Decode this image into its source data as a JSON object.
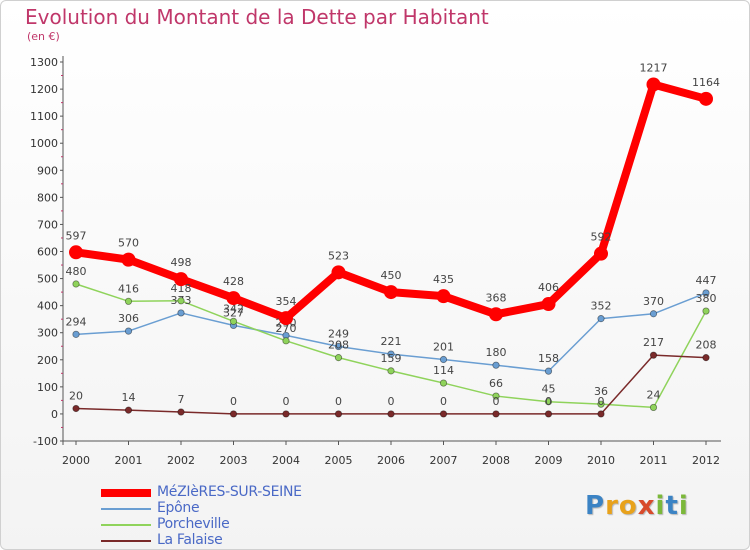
{
  "header": {
    "title": "Evolution du Montant de la Dette par Habitant",
    "unit": "(en €)"
  },
  "logo": {
    "text": [
      "P",
      "r",
      "o",
      "x",
      "i",
      "t",
      "i"
    ],
    "colors": [
      "#3b83c4",
      "#e8a21c",
      "#e8a21c",
      "#d84a2b",
      "#7bb83a",
      "#3b83c4",
      "#7bb83a"
    ]
  },
  "chart_data": {
    "type": "line",
    "title": "Evolution du Montant de la Dette par Habitant",
    "ylabel": "(en €)",
    "ylim": [
      -100,
      1300
    ],
    "yticks": [
      "-100",
      "0",
      "100",
      "200",
      "300",
      "400",
      "500",
      "600",
      "700",
      "800",
      "900",
      "1000",
      "1100",
      "1200",
      "1300"
    ],
    "x": [
      "2000",
      "2001",
      "2002",
      "2003",
      "2004",
      "2005",
      "2006",
      "2007",
      "2008",
      "2009",
      "2010",
      "2011",
      "2012"
    ],
    "legend_position": "bottom-left",
    "grid": false,
    "series": [
      {
        "name": "MéZIèRES-SUR-SEINE",
        "color": "#ff0000",
        "width": 8,
        "values": [
          597,
          570,
          498,
          428,
          354,
          523,
          450,
          435,
          368,
          406,
          592,
          1217,
          1164
        ],
        "labels": [
          "597",
          "570",
          "498",
          "428",
          "354",
          "523",
          "450",
          "435",
          "368",
          "406",
          "592",
          "1217",
          "1164"
        ]
      },
      {
        "name": "Epône",
        "color": "#6a9ed2",
        "width": 1.5,
        "values": [
          294,
          306,
          373,
          327,
          290,
          249,
          221,
          201,
          180,
          158,
          352,
          370,
          447
        ],
        "labels": [
          "294",
          "306",
          "373",
          "327",
          "290",
          "249",
          "221",
          "201",
          "180",
          "158",
          "352",
          "370",
          "447"
        ]
      },
      {
        "name": "Porcheville",
        "color": "#8fd35b",
        "width": 1.5,
        "values": [
          480,
          416,
          418,
          342,
          270,
          208,
          159,
          114,
          66,
          45,
          36,
          24,
          380
        ],
        "labels": [
          "480",
          "416",
          "418",
          "342",
          "270",
          "208",
          "159",
          "114",
          "66",
          "45",
          "36",
          "24",
          "380"
        ]
      },
      {
        "name": "La Falaise",
        "color": "#7a2a2a",
        "width": 1.5,
        "values": [
          20,
          14,
          7,
          0,
          0,
          0,
          0,
          0,
          0,
          0,
          0,
          217,
          208
        ],
        "labels": [
          "20",
          "14",
          "7",
          "0",
          "0",
          "0",
          "0",
          "0",
          "0",
          "0",
          "0",
          "217",
          "208"
        ]
      }
    ]
  }
}
